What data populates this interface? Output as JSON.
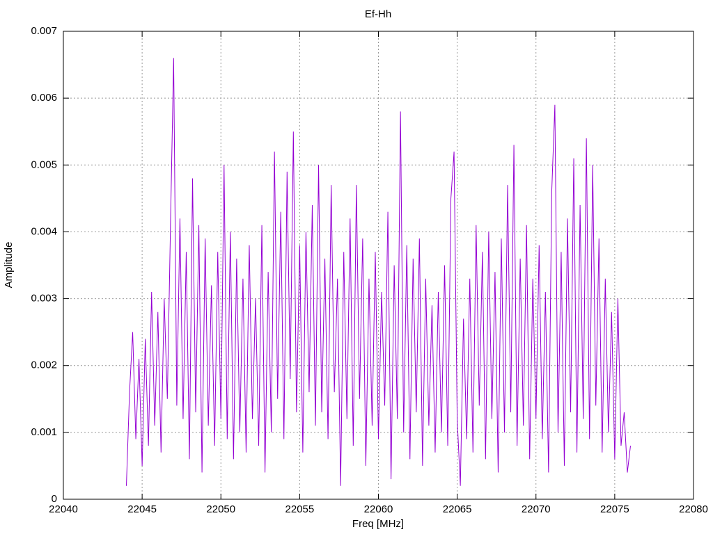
{
  "chart_data": {
    "type": "line",
    "title": "Ef-Hh",
    "x_label": "Freq [MHz]",
    "y_label": "Amplitude",
    "xlim": [
      22040,
      22080
    ],
    "xticks": [
      22040,
      22045,
      22050,
      22055,
      22060,
      22065,
      22070,
      22075,
      22080
    ],
    "ylim": [
      0,
      0.007
    ],
    "yticks": [
      0,
      0.001,
      0.002,
      0.003,
      0.004,
      0.005,
      0.006,
      0.007
    ],
    "grid": true,
    "x": [
      22044.0,
      22044.2,
      22044.4,
      22044.6,
      22044.8,
      22045.0,
      22045.2,
      22045.4,
      22045.6,
      22045.8,
      22046.0,
      22046.2,
      22046.4,
      22046.6,
      22046.8,
      22047.0,
      22047.2,
      22047.4,
      22047.6,
      22047.8,
      22048.0,
      22048.2,
      22048.4,
      22048.6,
      22048.8,
      22049.0,
      22049.2,
      22049.4,
      22049.6,
      22049.8,
      22050.0,
      22050.2,
      22050.4,
      22050.6,
      22050.8,
      22051.0,
      22051.2,
      22051.4,
      22051.6,
      22051.8,
      22052.0,
      22052.2,
      22052.4,
      22052.6,
      22052.8,
      22053.0,
      22053.2,
      22053.4,
      22053.6,
      22053.8,
      22054.0,
      22054.2,
      22054.4,
      22054.6,
      22054.8,
      22055.0,
      22055.2,
      22055.4,
      22055.6,
      22055.8,
      22056.0,
      22056.2,
      22056.4,
      22056.6,
      22056.8,
      22057.0,
      22057.2,
      22057.4,
      22057.6,
      22057.8,
      22058.0,
      22058.2,
      22058.4,
      22058.6,
      22058.8,
      22059.0,
      22059.2,
      22059.4,
      22059.6,
      22059.8,
      22060.0,
      22060.2,
      22060.4,
      22060.6,
      22060.8,
      22061.0,
      22061.2,
      22061.4,
      22061.6,
      22061.8,
      22062.0,
      22062.2,
      22062.4,
      22062.6,
      22062.8,
      22063.0,
      22063.2,
      22063.4,
      22063.6,
      22063.8,
      22064.0,
      22064.2,
      22064.4,
      22064.6,
      22064.8,
      22065.0,
      22065.2,
      22065.4,
      22065.6,
      22065.8,
      22066.0,
      22066.2,
      22066.4,
      22066.6,
      22066.8,
      22067.0,
      22067.2,
      22067.4,
      22067.6,
      22067.8,
      22068.0,
      22068.2,
      22068.4,
      22068.6,
      22068.8,
      22069.0,
      22069.2,
      22069.4,
      22069.6,
      22069.8,
      22070.0,
      22070.2,
      22070.4,
      22070.6,
      22070.8,
      22071.0,
      22071.2,
      22071.4,
      22071.6,
      22071.8,
      22072.0,
      22072.2,
      22072.4,
      22072.6,
      22072.8,
      22073.0,
      22073.2,
      22073.4,
      22073.6,
      22073.8,
      22074.0,
      22074.2,
      22074.4,
      22074.6,
      22074.8,
      22075.0,
      22075.2,
      22075.4,
      22075.6,
      22075.8,
      22076.0
    ],
    "series": [
      {
        "color": "#9400d3",
        "values": [
          0.0002,
          0.0016,
          0.0025,
          0.0009,
          0.0021,
          0.0005,
          0.0024,
          0.0008,
          0.0031,
          0.0011,
          0.0028,
          0.0007,
          0.003,
          0.0015,
          0.0041,
          0.0066,
          0.0014,
          0.0042,
          0.0012,
          0.0037,
          0.0006,
          0.0048,
          0.0013,
          0.0041,
          0.0004,
          0.0039,
          0.0011,
          0.0032,
          0.0008,
          0.0037,
          0.0012,
          0.005,
          0.0009,
          0.004,
          0.0006,
          0.0036,
          0.001,
          0.0033,
          0.0007,
          0.0038,
          0.0012,
          0.003,
          0.0008,
          0.0041,
          0.0004,
          0.0034,
          0.001,
          0.0052,
          0.0015,
          0.0043,
          0.0009,
          0.0049,
          0.0018,
          0.0055,
          0.0013,
          0.0038,
          0.0007,
          0.004,
          0.0016,
          0.0044,
          0.0011,
          0.005,
          0.0013,
          0.0036,
          0.0009,
          0.0047,
          0.0016,
          0.0033,
          0.0002,
          0.0037,
          0.0012,
          0.0042,
          0.0008,
          0.0047,
          0.0015,
          0.0039,
          0.0005,
          0.0033,
          0.0011,
          0.0037,
          0.0009,
          0.0031,
          0.0014,
          0.0043,
          0.0003,
          0.0035,
          0.0012,
          0.0058,
          0.001,
          0.0038,
          0.0006,
          0.0036,
          0.0013,
          0.0039,
          0.0005,
          0.0033,
          0.0011,
          0.0029,
          0.0007,
          0.0031,
          0.001,
          0.0035,
          0.0008,
          0.0045,
          0.0052,
          0.0012,
          0.0002,
          0.0027,
          0.0009,
          0.0033,
          0.0007,
          0.0041,
          0.0014,
          0.0037,
          0.0006,
          0.004,
          0.0012,
          0.0034,
          0.0004,
          0.0039,
          0.001,
          0.0047,
          0.0013,
          0.0053,
          0.0008,
          0.0036,
          0.0011,
          0.0041,
          0.0006,
          0.0033,
          0.0012,
          0.0038,
          0.0009,
          0.0031,
          0.0004,
          0.0046,
          0.0059,
          0.001,
          0.0037,
          0.0005,
          0.0042,
          0.0013,
          0.0051,
          0.0007,
          0.0044,
          0.0012,
          0.0054,
          0.0009,
          0.005,
          0.0014,
          0.0039,
          0.0007,
          0.0033,
          0.001,
          0.0028,
          0.0006,
          0.003,
          0.0008,
          0.0013,
          0.0004,
          0.0008
        ]
      }
    ]
  }
}
